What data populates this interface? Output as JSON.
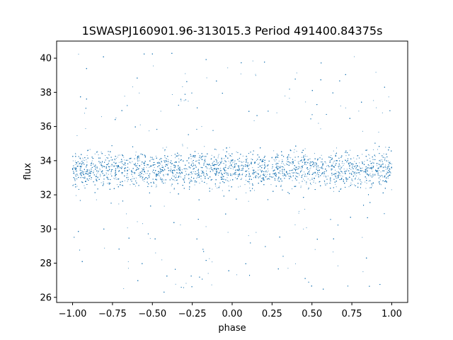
{
  "chart_data": {
    "type": "scatter",
    "title": "1SWASPJ160901.96-313015.3 Period 491400.84375s",
    "xlabel": "phase",
    "ylabel": "flux",
    "xlim": [
      -1.1,
      1.1
    ],
    "ylim": [
      25.7,
      41.0
    ],
    "xticks": [
      -1.0,
      -0.75,
      -0.5,
      -0.25,
      0.0,
      0.25,
      0.5,
      0.75,
      1.0
    ],
    "xtick_labels": [
      "−1.00",
      "−0.75",
      "−0.50",
      "−0.25",
      "0.00",
      "0.25",
      "0.50",
      "0.75",
      "1.00"
    ],
    "yticks": [
      26,
      28,
      30,
      32,
      34,
      36,
      38,
      40
    ],
    "ytick_labels": [
      "26",
      "28",
      "30",
      "32",
      "34",
      "36",
      "38",
      "40"
    ],
    "grid": false,
    "legend": "none",
    "marker_color": "#1f77b4",
    "series": [
      {
        "phase_range": [
          -1.0,
          1.0
        ],
        "flux_core_range": [
          32.0,
          35.0
        ],
        "flux_core_center": 33.5,
        "flux_full_range": [
          26.3,
          40.5
        ],
        "points": [
          [
            -0.98,
            33.4
          ],
          [
            -0.95,
            34.1
          ],
          [
            -0.92,
            32.8
          ],
          [
            -0.88,
            33.9
          ],
          [
            -0.85,
            33.2
          ],
          [
            -0.82,
            34.5
          ],
          [
            -0.78,
            33.0
          ],
          [
            -0.75,
            33.7
          ],
          [
            -0.72,
            32.6
          ],
          [
            -0.68,
            34.2
          ],
          [
            -0.65,
            27.7
          ],
          [
            -0.62,
            33.3
          ],
          [
            -0.58,
            34.0
          ],
          [
            -0.55,
            32.9
          ],
          [
            -0.52,
            33.6
          ],
          [
            -0.48,
            28.6
          ],
          [
            -0.45,
            33.8
          ],
          [
            -0.42,
            32.7
          ],
          [
            -0.38,
            34.3
          ],
          [
            -0.35,
            33.1
          ],
          [
            -0.32,
            37.5
          ],
          [
            -0.28,
            33.5
          ],
          [
            -0.25,
            32.8
          ],
          [
            -0.22,
            34.0
          ],
          [
            -0.18,
            33.3
          ],
          [
            -0.15,
            27.4
          ],
          [
            -0.12,
            33.9
          ],
          [
            -0.08,
            32.5
          ],
          [
            -0.05,
            33.6
          ],
          [
            -0.02,
            34.4
          ],
          [
            0.02,
            33.0
          ],
          [
            0.05,
            33.7
          ],
          [
            0.08,
            32.6
          ],
          [
            0.12,
            34.1
          ],
          [
            0.15,
            29.8
          ],
          [
            0.18,
            33.4
          ],
          [
            0.22,
            32.9
          ],
          [
            0.25,
            34.2
          ],
          [
            0.28,
            36.8
          ],
          [
            0.32,
            33.1
          ],
          [
            0.35,
            27.7
          ],
          [
            0.38,
            33.8
          ],
          [
            0.42,
            32.7
          ],
          [
            0.45,
            34.0
          ],
          [
            0.48,
            33.3
          ],
          [
            0.52,
            28.8
          ],
          [
            0.55,
            33.6
          ],
          [
            0.58,
            32.8
          ],
          [
            0.62,
            34.3
          ],
          [
            0.65,
            33.0
          ],
          [
            0.68,
            37.2
          ],
          [
            0.72,
            33.5
          ],
          [
            0.75,
            32.6
          ],
          [
            0.78,
            34.1
          ],
          [
            0.82,
            27.5
          ],
          [
            0.85,
            33.2
          ],
          [
            0.88,
            33.9
          ],
          [
            0.92,
            32.7
          ],
          [
            0.95,
            34.4
          ],
          [
            0.98,
            33.3
          ]
        ]
      }
    ]
  }
}
